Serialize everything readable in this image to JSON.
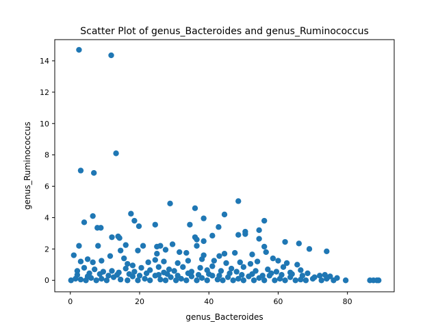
{
  "chart_data": {
    "type": "scatter",
    "title": "Scatter Plot of genus_Bacteroides and genus_Ruminococcus",
    "xlabel": "genus_Bacteroides",
    "ylabel": "genus_Ruminococcus",
    "xlim": [
      -4.5,
      93.5
    ],
    "ylim": [
      -0.73,
      15.35
    ],
    "xticks": [
      0,
      20,
      40,
      60,
      80
    ],
    "yticks": [
      0,
      2,
      4,
      6,
      8,
      10,
      12,
      14
    ],
    "grid": false,
    "legend": "none",
    "marker_color": "#1f77b4",
    "points": [
      [
        2.5,
        14.7
      ],
      [
        11.8,
        14.35
      ],
      [
        13.2,
        8.1
      ],
      [
        3.0,
        7.0
      ],
      [
        6.8,
        6.85
      ],
      [
        48.5,
        5.05
      ],
      [
        28.8,
        4.9
      ],
      [
        36.0,
        4.6
      ],
      [
        6.5,
        4.1
      ],
      [
        17.5,
        4.25
      ],
      [
        44.5,
        4.2
      ],
      [
        38.5,
        3.95
      ],
      [
        56.0,
        3.8
      ],
      [
        4.0,
        3.7
      ],
      [
        18.5,
        3.8
      ],
      [
        24.5,
        3.55
      ],
      [
        34.5,
        3.55
      ],
      [
        19.8,
        3.45
      ],
      [
        42.8,
        3.4
      ],
      [
        7.8,
        3.35
      ],
      [
        8.8,
        3.35
      ],
      [
        54.5,
        3.2
      ],
      [
        50.5,
        3.1
      ],
      [
        50.5,
        2.95
      ],
      [
        48.5,
        2.9
      ],
      [
        41.0,
        2.85
      ],
      [
        12.0,
        2.75
      ],
      [
        13.8,
        2.8
      ],
      [
        14.2,
        2.7
      ],
      [
        36.0,
        2.75
      ],
      [
        36.5,
        2.6
      ],
      [
        38.5,
        2.5
      ],
      [
        54.5,
        2.65
      ],
      [
        62.0,
        2.45
      ],
      [
        66.0,
        2.35
      ],
      [
        2.5,
        2.2
      ],
      [
        8.0,
        2.2
      ],
      [
        16.0,
        2.25
      ],
      [
        21.0,
        2.2
      ],
      [
        25.0,
        2.15
      ],
      [
        26.0,
        2.2
      ],
      [
        29.5,
        2.3
      ],
      [
        36.5,
        2.2
      ],
      [
        56.0,
        2.15
      ],
      [
        69.0,
        2.0
      ],
      [
        74.0,
        1.85
      ],
      [
        1.0,
        1.6
      ],
      [
        11.5,
        1.55
      ],
      [
        14.5,
        1.9
      ],
      [
        19.5,
        1.9
      ],
      [
        25.0,
        1.7
      ],
      [
        27.5,
        1.95
      ],
      [
        31.5,
        1.8
      ],
      [
        33.5,
        1.75
      ],
      [
        38.5,
        1.6
      ],
      [
        43.0,
        1.55
      ],
      [
        44.5,
        1.7
      ],
      [
        47.5,
        1.75
      ],
      [
        52.5,
        1.65
      ],
      [
        56.5,
        1.8
      ],
      [
        58.5,
        1.4
      ],
      [
        3.0,
        1.2
      ],
      [
        5.0,
        1.35
      ],
      [
        6.5,
        1.15
      ],
      [
        9.0,
        1.25
      ],
      [
        15.5,
        1.4
      ],
      [
        16.5,
        1.05
      ],
      [
        18.0,
        0.95
      ],
      [
        22.5,
        1.15
      ],
      [
        24.5,
        1.3
      ],
      [
        27.0,
        1.2
      ],
      [
        31.0,
        1.1
      ],
      [
        34.0,
        1.25
      ],
      [
        38.0,
        1.35
      ],
      [
        41.5,
        1.25
      ],
      [
        45.0,
        1.1
      ],
      [
        49.0,
        1.15
      ],
      [
        52.0,
        1.05
      ],
      [
        54.0,
        1.2
      ],
      [
        60.0,
        1.25
      ],
      [
        62.5,
        1.1
      ],
      [
        65.5,
        1.0
      ],
      [
        2.0,
        0.6
      ],
      [
        4.0,
        0.8
      ],
      [
        5.5,
        0.45
      ],
      [
        7.0,
        0.7
      ],
      [
        9.5,
        0.55
      ],
      [
        12.0,
        0.6
      ],
      [
        14.0,
        0.5
      ],
      [
        16.0,
        0.75
      ],
      [
        18.5,
        0.55
      ],
      [
        20.5,
        0.8
      ],
      [
        23.0,
        0.65
      ],
      [
        25.5,
        0.85
      ],
      [
        27.0,
        0.5
      ],
      [
        28.5,
        0.7
      ],
      [
        30.0,
        0.6
      ],
      [
        32.5,
        0.85
      ],
      [
        35.0,
        0.55
      ],
      [
        37.5,
        0.8
      ],
      [
        39.5,
        0.65
      ],
      [
        41.0,
        0.9
      ],
      [
        43.5,
        0.6
      ],
      [
        46.5,
        0.75
      ],
      [
        48.0,
        0.55
      ],
      [
        50.0,
        0.85
      ],
      [
        53.5,
        0.6
      ],
      [
        57.0,
        0.7
      ],
      [
        59.5,
        0.55
      ],
      [
        61.5,
        0.85
      ],
      [
        63.5,
        0.5
      ],
      [
        66.5,
        0.65
      ],
      [
        68.5,
        0.45
      ],
      [
        72.0,
        0.3
      ],
      [
        75.0,
        0.25
      ],
      [
        77.0,
        0.15
      ],
      [
        0.2,
        0.0
      ],
      [
        1.5,
        0.1
      ],
      [
        3.0,
        0.05
      ],
      [
        4.5,
        0.0
      ],
      [
        6.0,
        0.15
      ],
      [
        7.5,
        0.0
      ],
      [
        9.0,
        0.1
      ],
      [
        10.5,
        0.0
      ],
      [
        12.5,
        0.2
      ],
      [
        14.5,
        0.05
      ],
      [
        16.5,
        0.0
      ],
      [
        18.0,
        0.25
      ],
      [
        19.5,
        0.0
      ],
      [
        21.5,
        0.1
      ],
      [
        23.0,
        0.0
      ],
      [
        24.5,
        0.3
      ],
      [
        26.0,
        0.05
      ],
      [
        27.5,
        0.0
      ],
      [
        29.0,
        0.2
      ],
      [
        30.5,
        0.0
      ],
      [
        32.0,
        0.1
      ],
      [
        33.5,
        0.0
      ],
      [
        35.0,
        0.25
      ],
      [
        36.5,
        0.0
      ],
      [
        38.0,
        0.15
      ],
      [
        39.5,
        0.0
      ],
      [
        41.0,
        0.3
      ],
      [
        42.5,
        0.05
      ],
      [
        44.0,
        0.0
      ],
      [
        45.5,
        0.2
      ],
      [
        47.0,
        0.0
      ],
      [
        48.5,
        0.1
      ],
      [
        50.0,
        0.0
      ],
      [
        51.5,
        0.25
      ],
      [
        53.0,
        0.0
      ],
      [
        54.5,
        0.15
      ],
      [
        56.0,
        0.0
      ],
      [
        57.5,
        0.3
      ],
      [
        59.0,
        0.0
      ],
      [
        60.5,
        0.1
      ],
      [
        62.0,
        0.0
      ],
      [
        63.5,
        0.2
      ],
      [
        65.0,
        0.0
      ],
      [
        66.5,
        0.05
      ],
      [
        68.0,
        0.0
      ],
      [
        70.0,
        0.1
      ],
      [
        72.5,
        0.0
      ],
      [
        74.0,
        0.1
      ],
      [
        76.0,
        0.0
      ],
      [
        79.5,
        0.0
      ],
      [
        86.5,
        0.0
      ],
      [
        87.5,
        0.0
      ],
      [
        89.0,
        0.0
      ],
      [
        88.5,
        0.0
      ],
      [
        2.0,
        0.35
      ],
      [
        5.0,
        0.25
      ],
      [
        8.5,
        0.4
      ],
      [
        11.0,
        0.3
      ],
      [
        13.5,
        0.35
      ],
      [
        17.0,
        0.4
      ],
      [
        20.0,
        0.3
      ],
      [
        22.0,
        0.45
      ],
      [
        25.5,
        0.35
      ],
      [
        28.0,
        0.4
      ],
      [
        31.0,
        0.3
      ],
      [
        34.0,
        0.45
      ],
      [
        37.0,
        0.35
      ],
      [
        40.0,
        0.4
      ],
      [
        43.0,
        0.3
      ],
      [
        46.0,
        0.45
      ],
      [
        49.5,
        0.35
      ],
      [
        52.5,
        0.4
      ],
      [
        55.5,
        0.3
      ],
      [
        58.0,
        0.45
      ],
      [
        61.0,
        0.35
      ],
      [
        64.0,
        0.4
      ],
      [
        67.0,
        0.3
      ],
      [
        70.5,
        0.2
      ],
      [
        73.5,
        0.35
      ]
    ]
  }
}
